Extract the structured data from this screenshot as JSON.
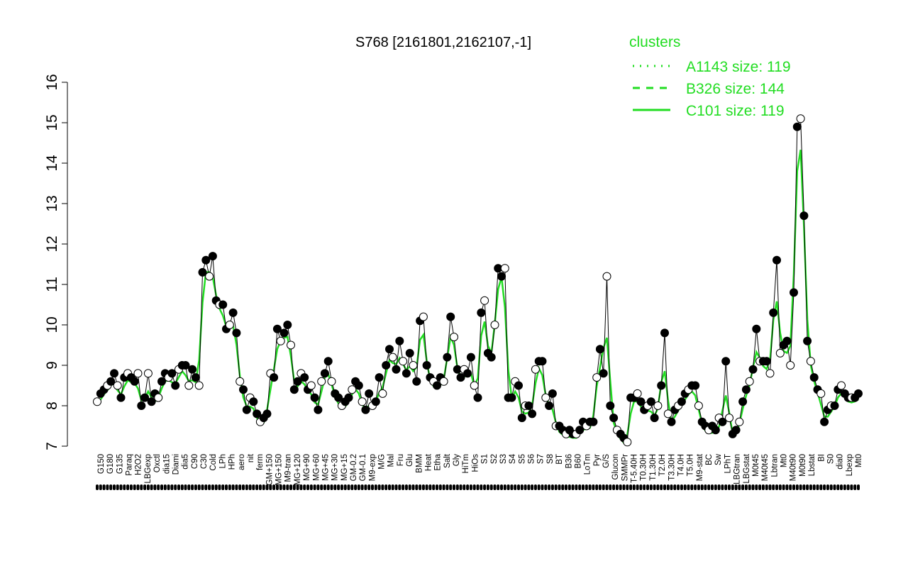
{
  "chart_data": {
    "type": "line",
    "title": "S768 [2161801,2162107,-1]",
    "xlabel": "",
    "ylabel": "",
    "ylim": [
      7,
      16
    ],
    "yticks": [
      7,
      8,
      9,
      10,
      11,
      12,
      13,
      14,
      15,
      16
    ],
    "grid": false,
    "legend": {
      "title": "clusters",
      "placement": "top-right",
      "entries": [
        {
          "label": "A1143 size: 119",
          "style": "dotted"
        },
        {
          "label": "B326 size: 144",
          "style": "dashed"
        },
        {
          "label": "C101 size: 119",
          "style": "solid"
        }
      ]
    },
    "x_tick_labels": [
      "G150",
      "G180",
      "G135",
      "Paraq",
      "H2O2",
      "LBGexp",
      "Oxctl",
      "dia15",
      "Diami",
      "dia5",
      "C90",
      "C30",
      "Cold",
      "LPh",
      "HPh",
      "aero",
      "nit",
      "ferm",
      "GM+150",
      "MG+150",
      "M9-tran",
      "MG+120",
      "MG+90",
      "MG+60",
      "MG+45",
      "MG+30",
      "MG+15",
      "GM-0.2",
      "GM-0.1",
      "M9-exp",
      "M/G",
      "Mal",
      "Fru",
      "Glu",
      "BMM",
      "Heat",
      "Etha",
      "Salt",
      "Gly",
      "HiTm",
      "HiOs",
      "S1",
      "S2",
      "S3",
      "S4",
      "S5",
      "S6",
      "S7",
      "S8",
      "BT",
      "B36",
      "B60",
      "LoTm",
      "Pyr",
      "G/S",
      "Glucon",
      "SMMPr",
      "T-5.40H",
      "T0.30H",
      "T1.30H",
      "T2.0H",
      "T3.30H",
      "T4.0H",
      "T5.0H",
      "M9-stat",
      "BC",
      "Sw",
      "LPhT",
      "LBGtran",
      "LBGstat",
      "M0t45",
      "M40t45",
      "Lbtran",
      "Mt0",
      "M40t90",
      "M0t90",
      "Lbstat",
      "BI",
      "S0",
      "dia0",
      "Lbexp",
      "Mt0"
    ],
    "series": [
      {
        "name": "",
        "points": [
          8.1,
          8.3,
          8.4,
          8.5,
          8.6,
          8.8,
          8.5,
          8.2,
          8.7,
          8.8,
          8.7,
          8.6,
          8.8,
          8.0,
          8.2,
          8.8,
          8.1,
          8.3,
          8.2,
          8.6,
          8.8,
          8.7,
          8.8,
          8.5,
          8.9,
          9.0,
          9.0,
          8.5,
          8.9,
          8.7,
          8.5,
          11.3,
          11.6,
          11.2,
          11.7,
          10.6,
          10.5,
          10.5,
          9.9,
          10.0,
          10.3,
          9.8,
          8.6,
          8.4,
          7.9,
          8.2,
          8.1,
          7.8,
          7.6,
          7.7,
          7.8,
          8.8,
          8.7,
          9.9,
          9.6,
          9.8,
          10.0,
          9.5,
          8.4,
          8.6,
          8.8,
          8.7,
          8.4,
          8.5,
          8.2,
          7.9,
          8.6,
          8.8,
          9.1,
          8.6,
          8.3,
          8.2,
          8.0,
          8.1,
          8.2,
          8.4,
          8.6,
          8.5,
          8.1,
          7.9,
          8.3,
          8.0,
          8.1,
          8.7,
          8.3,
          9.0,
          9.4,
          9.2,
          8.9,
          9.6,
          9.1,
          8.8,
          9.3,
          9.0,
          8.6,
          10.1,
          10.2,
          9.0,
          8.7,
          8.6,
          8.5,
          8.7,
          8.6,
          9.2,
          10.2,
          9.7,
          8.9,
          8.7,
          8.9,
          8.8,
          9.2,
          8.5,
          8.2,
          10.3,
          10.6,
          9.3,
          9.2,
          10.0,
          11.4,
          11.2,
          11.4,
          8.2,
          8.2,
          8.6,
          8.5,
          7.7,
          8.0,
          8.0,
          7.8,
          8.9,
          9.1,
          9.1,
          8.2,
          8.0,
          8.3,
          7.5,
          7.5,
          7.4,
          7.3,
          7.4,
          7.3,
          7.3,
          7.4,
          7.6,
          7.5,
          7.6,
          7.6,
          8.7,
          9.4,
          8.8,
          11.2,
          8.0,
          7.7,
          7.4,
          7.3,
          7.2,
          7.1,
          8.2,
          8.2,
          8.3,
          8.1,
          7.9,
          8.0,
          8.1,
          7.7,
          8.0,
          8.5,
          9.8,
          7.8,
          7.6,
          7.9,
          8.0,
          8.1,
          8.3,
          8.4,
          8.5,
          8.5,
          8.0,
          7.6,
          7.5,
          7.4,
          7.5,
          7.4,
          7.7,
          7.6,
          9.1,
          7.7,
          7.3,
          7.4,
          7.6,
          8.1,
          8.4,
          8.6,
          8.9,
          9.9,
          9.1,
          9.1,
          9.1,
          8.8,
          10.3,
          11.6,
          9.3,
          9.5,
          9.6,
          9.0,
          10.8,
          14.9,
          15.1,
          12.7,
          9.6,
          9.1,
          8.7,
          8.4,
          8.3,
          7.6,
          7.9,
          8.0,
          8.0,
          8.4,
          8.5,
          8.3,
          8.2,
          8.2,
          8.2,
          8.3
        ]
      }
    ]
  }
}
